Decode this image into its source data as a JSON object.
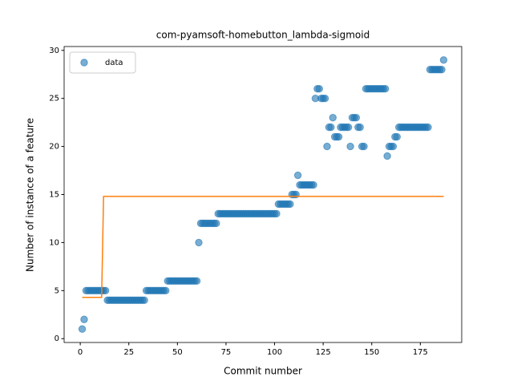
{
  "chart_data": {
    "type": "scatter",
    "title": "com-pyamsoft-homebutton_lambda-sigmoid",
    "xlabel": "Commit number",
    "ylabel": "Number of instance of a feature",
    "xlim": [
      -8.3,
      196.3
    ],
    "ylim": [
      -0.4,
      30.4
    ],
    "xticks": [
      0,
      25,
      50,
      75,
      100,
      125,
      150,
      175
    ],
    "yticks": [
      0,
      5,
      10,
      15,
      20,
      25,
      30
    ],
    "legend": "upper left",
    "series": [
      {
        "name": "data",
        "color": "#1f77b4",
        "kind": "scatter",
        "x": [
          1,
          2,
          3,
          4,
          5,
          6,
          7,
          8,
          9,
          10,
          11,
          12,
          13,
          14,
          15,
          16,
          17,
          18,
          19,
          20,
          21,
          22,
          23,
          24,
          25,
          26,
          27,
          28,
          29,
          30,
          31,
          32,
          33,
          34,
          35,
          36,
          37,
          38,
          39,
          40,
          41,
          42,
          43,
          44,
          45,
          46,
          47,
          48,
          49,
          50,
          51,
          52,
          53,
          54,
          55,
          56,
          57,
          58,
          59,
          60,
          61,
          62,
          63,
          64,
          65,
          66,
          67,
          68,
          69,
          70,
          71,
          72,
          73,
          74,
          75,
          76,
          77,
          78,
          79,
          80,
          81,
          82,
          83,
          84,
          85,
          86,
          87,
          88,
          89,
          90,
          91,
          92,
          93,
          94,
          95,
          96,
          97,
          98,
          99,
          100,
          101,
          102,
          103,
          104,
          105,
          106,
          107,
          108,
          109,
          110,
          111,
          112,
          113,
          114,
          115,
          116,
          117,
          118,
          119,
          120,
          121,
          122,
          123,
          124,
          125,
          126,
          127,
          128,
          129,
          130,
          131,
          132,
          133,
          134,
          135,
          136,
          137,
          138,
          139,
          140,
          141,
          142,
          143,
          144,
          145,
          146,
          147,
          148,
          149,
          150,
          151,
          152,
          153,
          154,
          155,
          156,
          157,
          158,
          159,
          160,
          161,
          162,
          163,
          164,
          165,
          166,
          167,
          168,
          169,
          170,
          171,
          172,
          173,
          174,
          175,
          176,
          177,
          178,
          179,
          180,
          181,
          182,
          183,
          184,
          185,
          186,
          187
        ],
        "values": [
          1,
          2,
          5,
          5,
          5,
          5,
          5,
          5,
          5,
          5,
          5,
          5,
          5,
          4,
          4,
          4,
          4,
          4,
          4,
          4,
          4,
          4,
          4,
          4,
          4,
          4,
          4,
          4,
          4,
          4,
          4,
          4,
          4,
          5,
          5,
          5,
          5,
          5,
          5,
          5,
          5,
          5,
          5,
          5,
          6,
          6,
          6,
          6,
          6,
          6,
          6,
          6,
          6,
          6,
          6,
          6,
          6,
          6,
          6,
          6,
          10,
          12,
          12,
          12,
          12,
          12,
          12,
          12,
          12,
          12,
          13,
          13,
          13,
          13,
          13,
          13,
          13,
          13,
          13,
          13,
          13,
          13,
          13,
          13,
          13,
          13,
          13,
          13,
          13,
          13,
          13,
          13,
          13,
          13,
          13,
          13,
          13,
          13,
          13,
          13,
          13,
          14,
          14,
          14,
          14,
          14,
          14,
          14,
          15,
          15,
          15,
          17,
          16,
          16,
          16,
          16,
          16,
          16,
          16,
          16,
          25,
          26,
          26,
          25,
          25,
          25,
          20,
          22,
          22,
          23,
          21,
          21,
          21,
          22,
          22,
          22,
          22,
          22,
          20,
          23,
          23,
          23,
          22,
          22,
          20,
          20,
          26,
          26,
          26,
          26,
          26,
          26,
          26,
          26,
          26,
          26,
          26,
          19,
          20,
          20,
          20,
          21,
          21,
          22,
          22,
          22,
          22,
          22,
          22,
          22,
          22,
          22,
          22,
          22,
          22,
          22,
          22,
          22,
          22,
          28,
          28,
          28,
          28,
          28,
          28,
          28,
          29
        ]
      },
      {
        "color": "#ff7f0e",
        "kind": "line",
        "x": [
          1,
          11,
          12,
          187
        ],
        "values": [
          4.3,
          4.3,
          14.8,
          14.8
        ]
      }
    ]
  }
}
